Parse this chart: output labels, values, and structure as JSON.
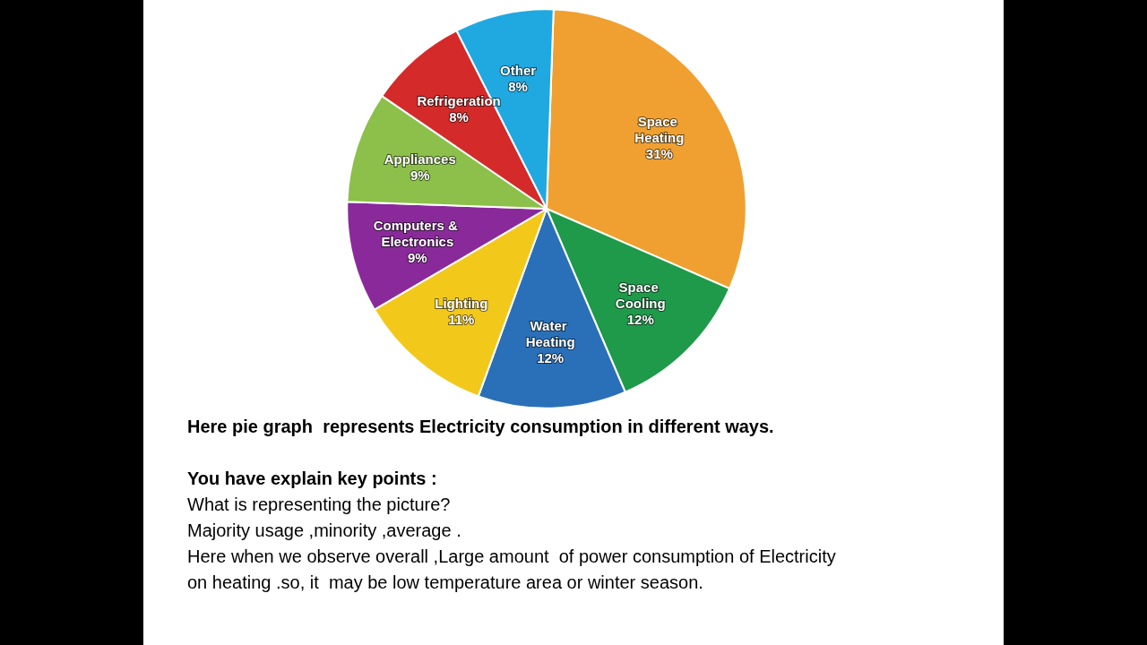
{
  "chart_data": {
    "type": "pie",
    "categories": [
      "Space Heating",
      "Space Cooling",
      "Water Heating",
      "Lighting",
      "Computers & Electronics",
      "Appliances",
      "Refrigeration",
      "Other"
    ],
    "values": [
      31,
      12,
      12,
      11,
      9,
      9,
      8,
      8
    ],
    "value_labels": [
      "31%",
      "12%",
      "12%",
      "11%",
      "9%",
      "9%",
      "8%",
      "8%"
    ],
    "colors": [
      "#f0a030",
      "#1e9a4a",
      "#2a70b8",
      "#f2c81a",
      "#8a2a9a",
      "#8cc04a",
      "#d42a2a",
      "#20a8e0"
    ],
    "legend": false,
    "annotations": [
      "Here pie graph  represents Electricity consumption in different ways.",
      "You have explain key points :",
      "What is representing the picture?",
      "Majority usage ,minority ,average .",
      "Here when we observe overall ,Large amount  of power consumption of Electricity on heating .so, it  may be low temperature area or winter season."
    ]
  }
}
